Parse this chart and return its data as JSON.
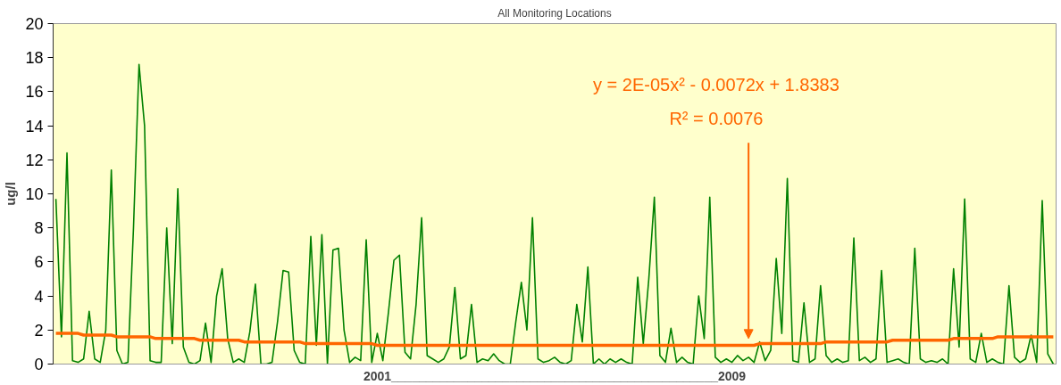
{
  "chart_data": {
    "type": "line",
    "title": "All Monitoring Locations",
    "xlabel": "2001_______________________________________________2009",
    "ylabel": "ug/l",
    "categories": [
      null,
      null,
      null,
      null,
      null,
      null,
      null,
      null,
      null,
      null,
      null,
      null,
      null,
      null,
      null,
      null,
      null,
      null,
      null,
      null,
      null,
      null,
      null,
      null,
      null,
      null,
      null,
      null,
      null,
      null,
      null,
      null,
      null,
      null,
      null,
      null,
      null,
      null,
      null,
      null,
      null,
      null,
      null,
      null,
      null,
      null,
      null,
      null,
      null,
      null,
      null,
      null,
      null,
      null,
      null,
      null,
      null,
      null,
      null,
      null,
      null,
      null,
      null,
      null,
      null,
      null,
      null,
      null,
      null,
      null,
      null,
      null,
      null,
      null,
      null,
      null,
      null,
      null,
      null,
      null,
      null,
      null,
      null,
      null,
      null,
      null,
      null,
      null,
      null,
      null,
      null,
      null,
      null,
      null,
      null,
      null,
      null,
      null,
      null,
      null,
      null,
      null,
      null,
      null,
      null,
      null,
      null,
      null,
      null,
      null,
      null,
      null,
      null,
      null,
      null,
      null,
      null,
      null,
      null,
      null,
      null,
      null,
      null,
      null,
      null,
      null,
      null,
      null,
      null,
      null,
      null,
      null,
      null,
      null,
      null,
      null,
      null,
      null,
      null,
      null,
      null,
      null,
      null,
      null,
      null,
      null,
      null,
      null,
      null,
      null,
      null,
      null,
      null,
      null,
      null,
      null,
      null,
      null,
      null,
      null,
      null,
      null,
      null,
      null,
      null,
      null,
      null,
      null,
      null,
      null,
      null,
      null,
      null,
      null,
      null,
      null,
      null,
      null,
      null,
      null,
      null
    ],
    "series": [
      {
        "color": "#008000",
        "values": [
          9.7,
          1.6,
          12.4,
          0.2,
          0.1,
          0.3,
          3.1,
          0.3,
          0.1,
          2.0,
          11.4,
          0.8,
          0,
          0.1,
          8.0,
          17.6,
          14.0,
          0.2,
          0.1,
          0.1,
          8.0,
          1.2,
          10.3,
          1.0,
          0.1,
          0,
          0.2,
          2.4,
          0.1,
          4.0,
          5.6,
          1.5,
          0.1,
          0.3,
          0.1,
          1.9,
          4.7,
          0,
          0,
          0.1,
          2.5,
          5.5,
          5.4,
          0.8,
          0.1,
          0,
          7.5,
          1.1,
          7.6,
          0,
          6.7,
          6.8,
          2.0,
          0.1,
          0.4,
          0.2,
          7.3,
          0.1,
          1.8,
          0.2,
          3.0,
          6.1,
          6.4,
          0.7,
          0.3,
          3.5,
          8.6,
          0.5,
          0.3,
          0.1,
          0.3,
          1.0,
          4.5,
          0.3,
          0.5,
          3.5,
          0.1,
          0.3,
          0.2,
          0.6,
          0.2,
          0,
          0,
          2.5,
          4.8,
          2.0,
          8.6,
          0.3,
          0.1,
          0.2,
          0.4,
          0.1,
          0,
          0.2,
          3.5,
          1.3,
          5.7,
          0,
          0.3,
          0,
          0.3,
          0.1,
          0.3,
          0.1,
          0,
          5.1,
          1.2,
          5.0,
          9.8,
          0.5,
          0.1,
          2.1,
          0.1,
          0.4,
          0.1,
          0,
          4.0,
          1.5,
          9.8,
          0.4,
          0.1,
          0.3,
          0.1,
          0.5,
          0.2,
          0.4,
          0.1,
          1.3,
          0.2,
          0.8,
          6.2,
          1.8,
          10.9,
          0.2,
          0.1,
          3.6,
          0.1,
          0.3,
          4.6,
          0.5,
          0.1,
          0.3,
          0.1,
          0.2,
          7.4,
          0.2,
          0.4,
          0.1,
          0.3,
          5.5,
          0.1,
          0.2,
          0.3,
          0.1,
          0,
          6.8,
          0.3,
          0.1,
          0.2,
          0.1,
          0.3,
          0,
          5.6,
          1.0,
          9.7,
          0.3,
          0.1,
          1.8,
          0.1,
          0.3,
          0.1,
          0,
          4.6,
          0.4,
          0.1,
          0.3,
          1.7,
          0.1,
          9.6,
          0.6,
          0
        ]
      },
      {
        "color": "#ff6600",
        "values": [
          1.8,
          1.8,
          1.8,
          1.8,
          1.8,
          1.7,
          1.7,
          1.7,
          1.7,
          1.7,
          1.7,
          1.6,
          1.6,
          1.6,
          1.6,
          1.6,
          1.6,
          1.6,
          1.5,
          1.5,
          1.5,
          1.5,
          1.5,
          1.5,
          1.5,
          1.5,
          1.4,
          1.4,
          1.4,
          1.4,
          1.4,
          1.4,
          1.4,
          1.4,
          1.3,
          1.3,
          1.3,
          1.3,
          1.3,
          1.3,
          1.3,
          1.3,
          1.3,
          1.3,
          1.3,
          1.2,
          1.2,
          1.2,
          1.2,
          1.2,
          1.2,
          1.2,
          1.2,
          1.2,
          1.2,
          1.2,
          1.2,
          1.2,
          1.1,
          1.1,
          1.1,
          1.1,
          1.1,
          1.1,
          1.1,
          1.1,
          1.1,
          1.1,
          1.1,
          1.1,
          1.1,
          1.1,
          1.1,
          1.1,
          1.1,
          1.1,
          1.1,
          1.1,
          1.1,
          1.1,
          1.1,
          1.1,
          1.1,
          1.1,
          1.1,
          1.1,
          1.1,
          1.1,
          1.1,
          1.1,
          1.1,
          1.1,
          1.1,
          1.1,
          1.1,
          1.1,
          1.1,
          1.1,
          1.1,
          1.1,
          1.1,
          1.1,
          1.1,
          1.1,
          1.1,
          1.1,
          1.1,
          1.1,
          1.1,
          1.1,
          1.1,
          1.1,
          1.1,
          1.1,
          1.1,
          1.1,
          1.1,
          1.1,
          1.1,
          1.1,
          1.1,
          1.1,
          1.1,
          1.1,
          1.1,
          1.1,
          1.1,
          1.2,
          1.2,
          1.2,
          1.2,
          1.2,
          1.2,
          1.2,
          1.2,
          1.2,
          1.2,
          1.2,
          1.2,
          1.3,
          1.3,
          1.3,
          1.3,
          1.3,
          1.3,
          1.3,
          1.3,
          1.3,
          1.3,
          1.3,
          1.3,
          1.4,
          1.4,
          1.4,
          1.4,
          1.4,
          1.4,
          1.4,
          1.4,
          1.4,
          1.4,
          1.4,
          1.5,
          1.5,
          1.5,
          1.5,
          1.5,
          1.5,
          1.5,
          1.5,
          1.6,
          1.6,
          1.6,
          1.6,
          1.6,
          1.6,
          1.6,
          1.6,
          1.6,
          1.6,
          1.6
        ]
      }
    ],
    "annotations": [
      "y = 2E-05x² - 0.0072x + 1.8383",
      "R² = 0.0076"
    ],
    "ylim": [
      0,
      20
    ],
    "yticks": [
      0,
      2,
      4,
      6,
      8,
      10,
      12,
      14,
      16,
      18,
      20
    ],
    "grid": false
  }
}
